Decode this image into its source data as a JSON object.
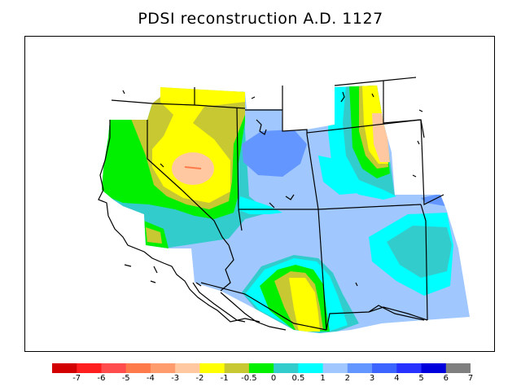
{
  "title": "PDSI reconstruction A.D. 1127",
  "legend": {
    "colors": [
      "#d20000",
      "#ff1e1e",
      "#ff4c4c",
      "#ff7a4a",
      "#ff9c6e",
      "#ffc8a0",
      "#ffff00",
      "#c8c832",
      "#00f000",
      "#32cccc",
      "#00ffff",
      "#a0c8ff",
      "#6496ff",
      "#3c64ff",
      "#2832ff",
      "#0000dc",
      "#7f7f7f"
    ],
    "tick_labels": [
      "-7",
      "-6",
      "-5",
      "-4",
      "-3",
      "-2",
      "-1",
      "-0.5",
      "0",
      "0.5",
      "1",
      "2",
      "3",
      "4",
      "5",
      "6",
      "7"
    ]
  },
  "map": {
    "field_colors": {
      "base": "#a0c8ff",
      "blue_dark": "#6496ff",
      "cyan": "#00ffff",
      "teal": "#32cccc",
      "green": "#00f000",
      "olive": "#c8c832",
      "yellow": "#ffff00",
      "peach": "#ffc8a0",
      "orange": "#ff7a4a"
    }
  }
}
